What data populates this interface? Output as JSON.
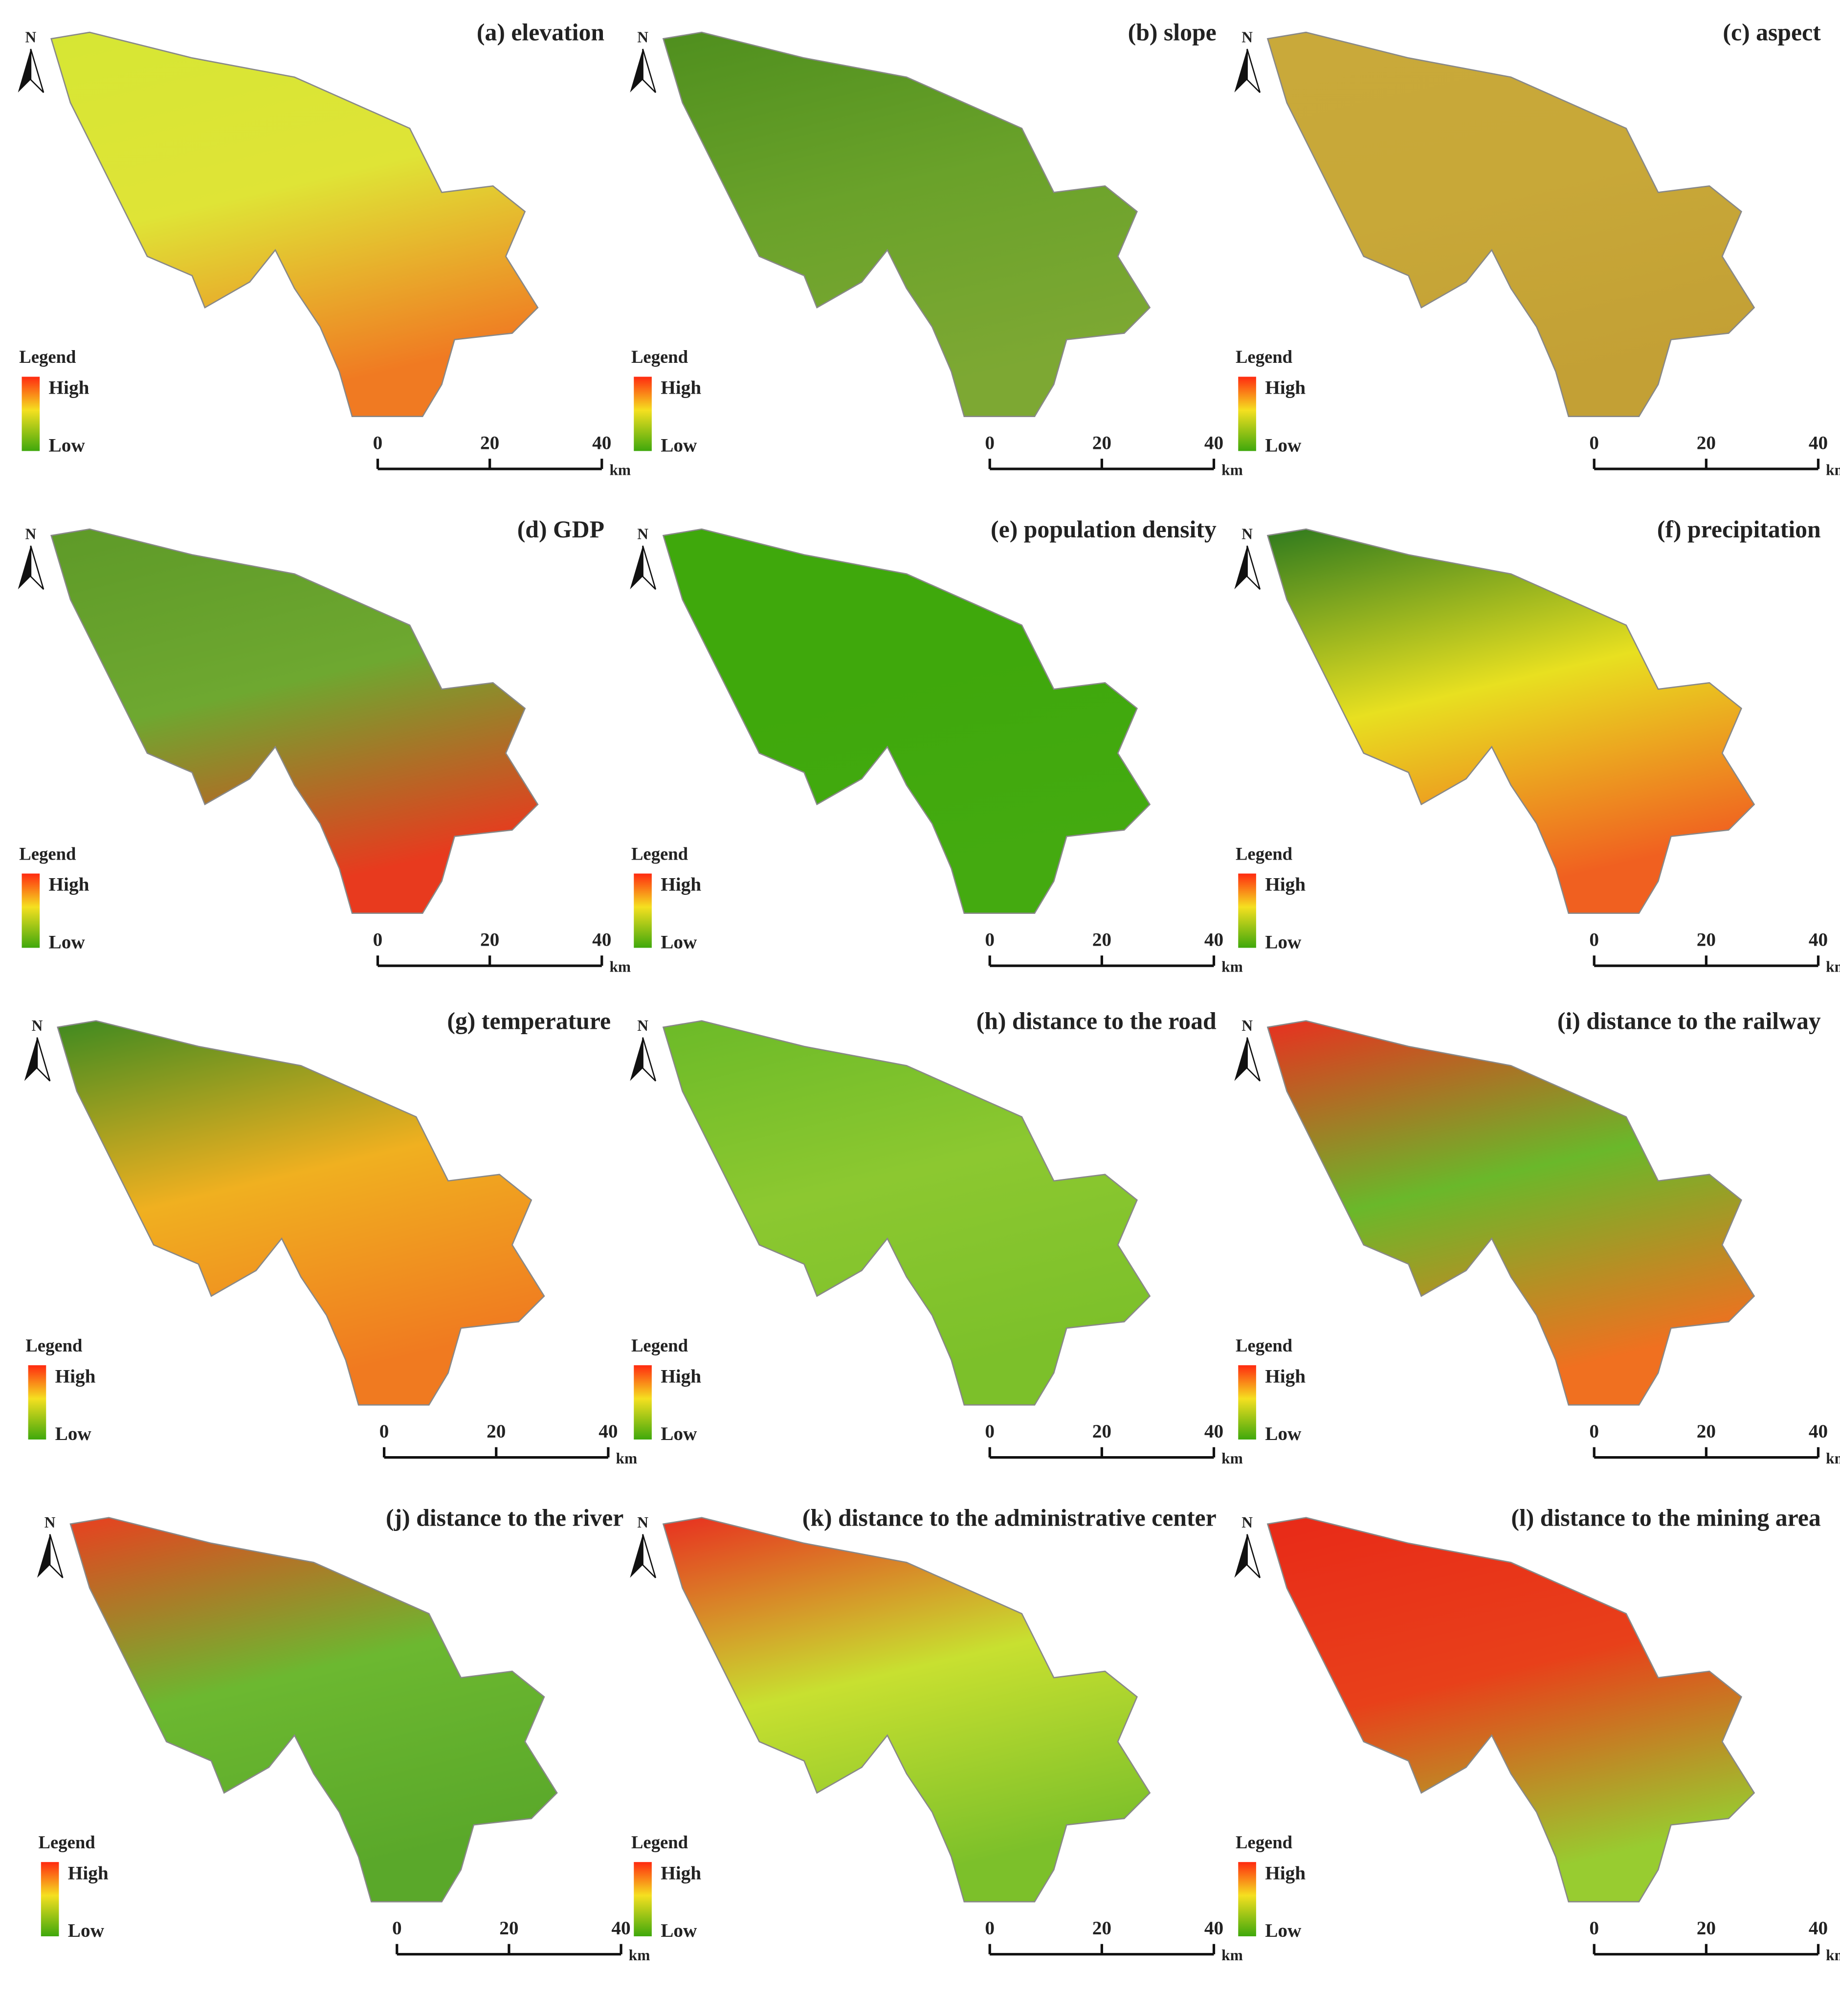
{
  "panels": [
    {
      "title": "(a) elevation",
      "north": "N",
      "legend": {
        "title": "Legend",
        "high": "High",
        "low": "Low"
      },
      "scale": {
        "ticks": [
          0,
          20,
          40
        ],
        "unit": "km"
      },
      "colors": [
        "#d6e634",
        "#dfe436",
        "#f07a22"
      ]
    },
    {
      "title": "(b) slope",
      "north": "N",
      "legend": {
        "title": "Legend",
        "high": "High",
        "low": "Low"
      },
      "scale": {
        "ticks": [
          0,
          20,
          40
        ],
        "unit": "km"
      },
      "colors": [
        "#4f8f1e",
        "#6aa22a",
        "#7da833"
      ]
    },
    {
      "title": "(c) aspect",
      "north": "N",
      "legend": {
        "title": "Legend",
        "high": "High",
        "low": "Low"
      },
      "scale": {
        "ticks": [
          0,
          20,
          40
        ],
        "unit": "km"
      },
      "colors": [
        "#c9a93a",
        "#c8a838",
        "#c3a035"
      ]
    },
    {
      "title": "(d) GDP",
      "north": "N",
      "legend": {
        "title": "Legend",
        "high": "High",
        "low": "Low"
      },
      "scale": {
        "ticks": [
          0,
          20,
          40
        ],
        "unit": "km"
      },
      "colors": [
        "#5e9a28",
        "#6ea830",
        "#e83a1e"
      ]
    },
    {
      "title": "(e) population density",
      "north": "N",
      "legend": {
        "title": "Legend",
        "high": "High",
        "low": "Low"
      },
      "scale": {
        "ticks": [
          0,
          20,
          40
        ],
        "unit": "km"
      },
      "colors": [
        "#3fa80c",
        "#3fa80c",
        "#44aa10"
      ]
    },
    {
      "title": "(f) precipitation",
      "north": "N",
      "legend": {
        "title": "Legend",
        "high": "High",
        "low": "Low"
      },
      "scale": {
        "ticks": [
          0,
          20,
          40
        ],
        "unit": "km"
      },
      "colors": [
        "#2f7a1e",
        "#e8e020",
        "#f06020"
      ]
    },
    {
      "title": "(g) temperature",
      "north": "N",
      "legend": {
        "title": "Legend",
        "high": "High",
        "low": "Low"
      },
      "scale": {
        "ticks": [
          0,
          20,
          40
        ],
        "unit": "km"
      },
      "colors": [
        "#3f8a20",
        "#f0b020",
        "#f07a20"
      ]
    },
    {
      "title": "(h) distance to the road",
      "north": "N",
      "legend": {
        "title": "Legend",
        "high": "High",
        "low": "Low"
      },
      "scale": {
        "ticks": [
          0,
          20,
          40
        ],
        "unit": "km"
      },
      "colors": [
        "#6cba28",
        "#8cc830",
        "#7cc02a"
      ]
    },
    {
      "title": "(i) distance to the railway",
      "north": "N",
      "legend": {
        "title": "Legend",
        "high": "High",
        "low": "Low"
      },
      "scale": {
        "ticks": [
          0,
          20,
          40
        ],
        "unit": "km"
      },
      "colors": [
        "#e83020",
        "#6ab82a",
        "#f07020"
      ]
    },
    {
      "title": "(j) distance to the river",
      "north": "N",
      "legend": {
        "title": "Legend",
        "high": "High",
        "low": "Low"
      },
      "scale": {
        "ticks": [
          0,
          20,
          40
        ],
        "unit": "km"
      },
      "colors": [
        "#e84020",
        "#6cb830",
        "#5aa82a"
      ]
    },
    {
      "title": "(k) distance to the administrative center",
      "north": "N",
      "legend": {
        "title": "Legend",
        "high": "High",
        "low": "Low"
      },
      "scale": {
        "ticks": [
          0,
          20,
          40
        ],
        "unit": "km"
      },
      "colors": [
        "#e83020",
        "#c8e030",
        "#7cc02a"
      ]
    },
    {
      "title": "(l) distance to the mining area",
      "north": "N",
      "legend": {
        "title": "Legend",
        "high": "High",
        "low": "Low"
      },
      "scale": {
        "ticks": [
          0,
          20,
          40
        ],
        "unit": "km"
      },
      "colors": [
        "#e82a18",
        "#e8401a",
        "#98cc30"
      ]
    }
  ]
}
